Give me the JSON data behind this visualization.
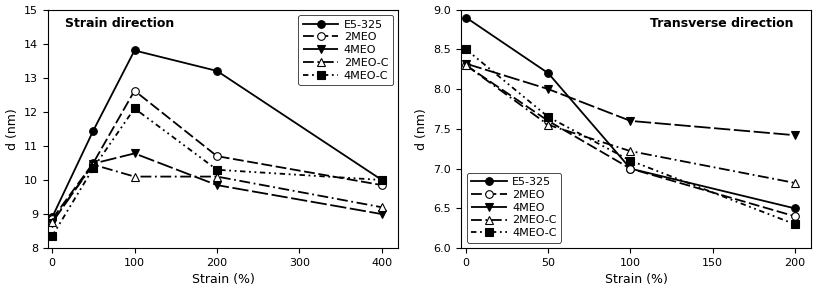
{
  "left": {
    "title": "Strain direction",
    "xlabel": "Strain (%)",
    "ylabel": "d (nm)",
    "xlim": [
      -5,
      420
    ],
    "ylim": [
      8,
      15
    ],
    "yticks": [
      8,
      9,
      10,
      11,
      12,
      13,
      14,
      15
    ],
    "xticks": [
      0,
      100,
      200,
      300,
      400
    ],
    "series": {
      "E5-325": {
        "x": [
          0,
          50,
          100,
          200,
          400
        ],
        "y": [
          8.9,
          11.45,
          13.8,
          13.2,
          10.0
        ],
        "dashes": [],
        "marker": "o",
        "markerfill": "black"
      },
      "2MEO": {
        "x": [
          0,
          50,
          100,
          200,
          400
        ],
        "y": [
          8.85,
          10.5,
          12.62,
          10.7,
          9.85
        ],
        "dashes": [
          6,
          2
        ],
        "marker": "o",
        "markerfill": "white"
      },
      "4MEO": {
        "x": [
          0,
          50,
          100,
          200,
          400
        ],
        "y": [
          8.75,
          10.48,
          10.78,
          9.85,
          9.0
        ],
        "dashes": [
          9,
          2
        ],
        "marker": "v",
        "markerfill": "black"
      },
      "2MEO-C": {
        "x": [
          0,
          50,
          100,
          200,
          400
        ],
        "y": [
          8.78,
          10.45,
          10.1,
          10.1,
          9.2
        ],
        "dashes": [
          6,
          2,
          1,
          2
        ],
        "marker": "^",
        "markerfill": "white"
      },
      "4MEO-C": {
        "x": [
          0,
          50,
          100,
          200,
          400
        ],
        "y": [
          8.35,
          10.35,
          12.1,
          10.3,
          10.0
        ],
        "dashes": [
          3,
          2,
          1,
          2,
          1,
          2
        ],
        "marker": "s",
        "markerfill": "black"
      }
    }
  },
  "right": {
    "title": "Transverse direction",
    "xlabel": "Strain (%)",
    "ylabel": "d (nm)",
    "xlim": [
      -3,
      210
    ],
    "ylim": [
      6.0,
      9.0
    ],
    "yticks": [
      6.0,
      6.5,
      7.0,
      7.5,
      8.0,
      8.5,
      9.0
    ],
    "xticks": [
      0,
      50,
      100,
      150,
      200
    ],
    "series": {
      "E5-325": {
        "x": [
          0,
          50,
          100,
          200
        ],
        "y": [
          8.9,
          8.2,
          7.0,
          6.5
        ],
        "dashes": [],
        "marker": "o",
        "markerfill": "black"
      },
      "2MEO": {
        "x": [
          0,
          50,
          100,
          200
        ],
        "y": [
          8.3,
          7.6,
          7.0,
          6.4
        ],
        "dashes": [
          6,
          2
        ],
        "marker": "o",
        "markerfill": "white"
      },
      "4MEO": {
        "x": [
          0,
          50,
          100,
          200
        ],
        "y": [
          8.32,
          8.0,
          7.6,
          7.42
        ],
        "dashes": [
          9,
          2
        ],
        "marker": "v",
        "markerfill": "black"
      },
      "2MEO-C": {
        "x": [
          0,
          50,
          100,
          200
        ],
        "y": [
          8.3,
          7.55,
          7.22,
          6.82
        ],
        "dashes": [
          6,
          2,
          1,
          2
        ],
        "marker": "^",
        "markerfill": "white"
      },
      "4MEO-C": {
        "x": [
          0,
          50,
          100,
          200
        ],
        "y": [
          8.5,
          7.65,
          7.1,
          6.3
        ],
        "dashes": [
          3,
          2,
          1,
          2,
          1,
          2
        ],
        "marker": "s",
        "markerfill": "black"
      }
    }
  },
  "linewidth": 1.3,
  "markersize": 5.5,
  "color": "black",
  "fontsize": 8,
  "label_fontsize": 9,
  "title_fontsize": 9
}
